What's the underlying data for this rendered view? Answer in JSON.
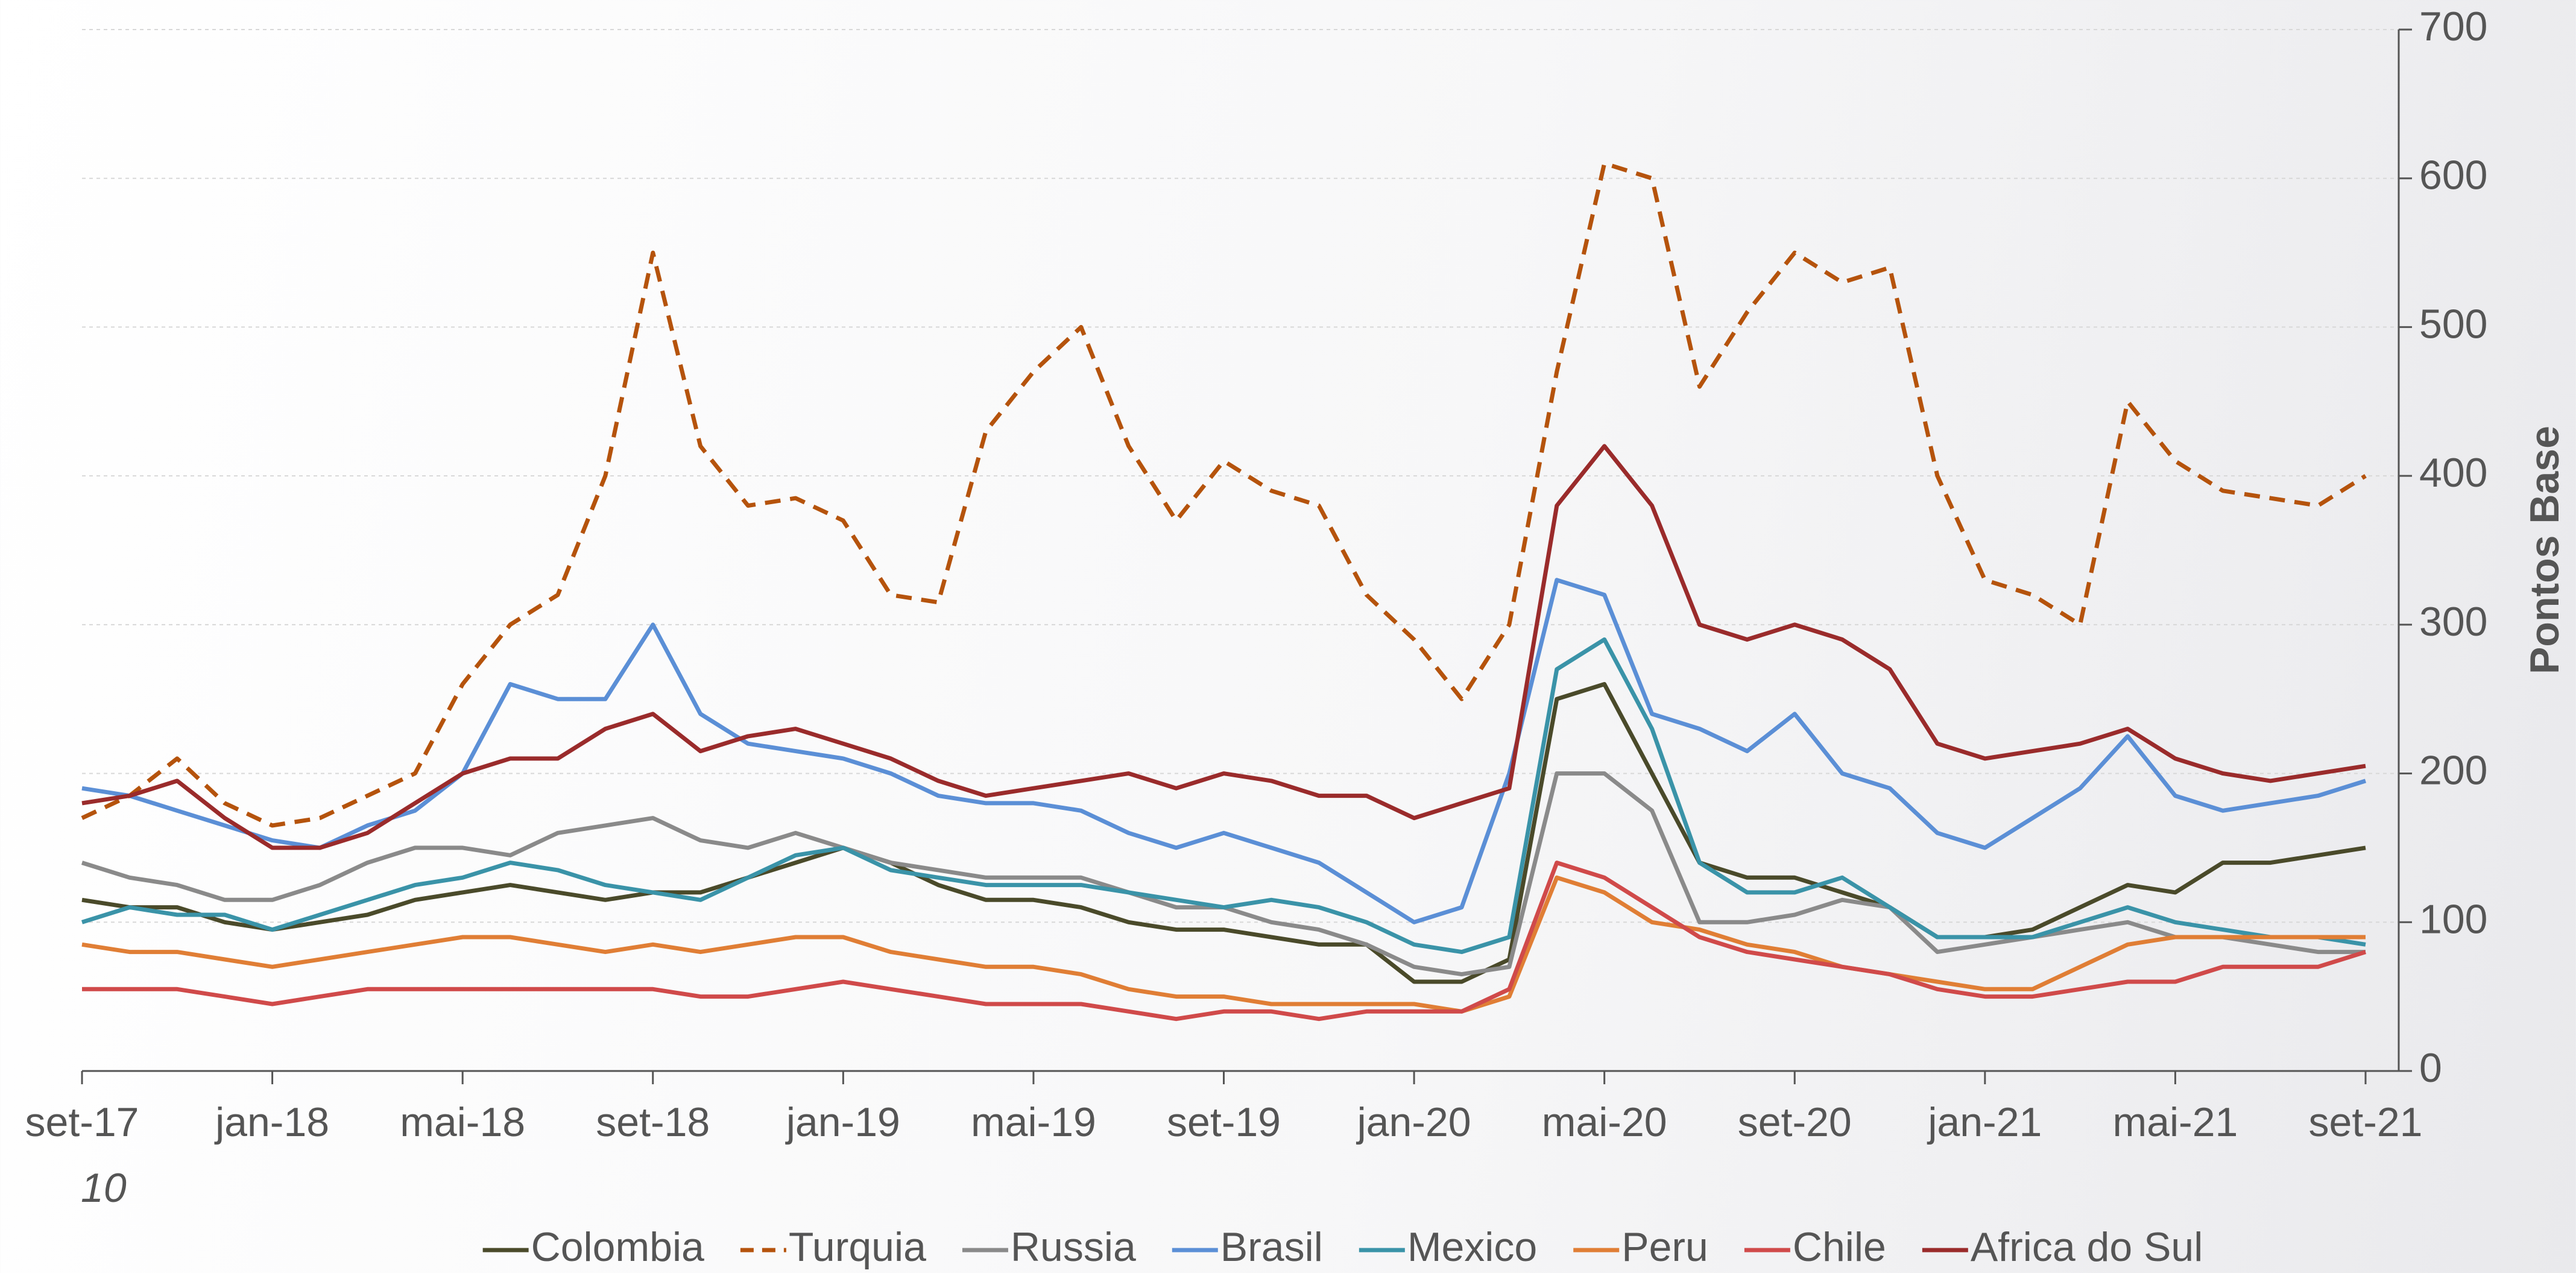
{
  "chart_data": {
    "type": "line",
    "y_axis_label": "Pontos Base",
    "annotation": "10",
    "categories": [
      "set-17",
      null,
      null,
      null,
      "jan-18",
      null,
      null,
      null,
      "mai-18",
      null,
      null,
      null,
      "set-18",
      null,
      null,
      null,
      "jan-19",
      null,
      null,
      null,
      "mai-19",
      null,
      null,
      null,
      "set-19",
      null,
      null,
      null,
      "jan-20",
      null,
      null,
      null,
      "mai-20",
      null,
      null,
      null,
      "set-20",
      null,
      null,
      null,
      "jan-21",
      null,
      null,
      null,
      "mai-21",
      null,
      null,
      null,
      "set-21"
    ],
    "ylim": [
      0,
      700
    ],
    "yticks": [
      0,
      100,
      200,
      300,
      400,
      500,
      600,
      700
    ],
    "y_axis_side": "right",
    "grid": true,
    "legend": "bottom",
    "series": [
      {
        "name": "Colombia",
        "color": "#4a4a2a",
        "values": [
          115,
          110,
          110,
          100,
          95,
          100,
          105,
          115,
          120,
          125,
          120,
          115,
          120,
          120,
          130,
          140,
          150,
          140,
          125,
          115,
          115,
          110,
          100,
          95,
          95,
          90,
          85,
          85,
          60,
          60,
          75,
          250,
          260,
          200,
          140,
          130,
          130,
          120,
          110,
          90,
          90,
          95,
          110,
          125,
          120,
          140,
          140,
          145,
          150
        ]
      },
      {
        "name": "Turquia",
        "color": "#b5530c",
        "dashed": true,
        "values": [
          170,
          185,
          210,
          180,
          165,
          170,
          185,
          200,
          260,
          300,
          320,
          400,
          550,
          420,
          380,
          385,
          370,
          320,
          315,
          430,
          470,
          500,
          420,
          370,
          410,
          390,
          380,
          320,
          290,
          250,
          300,
          470,
          610,
          600,
          460,
          510,
          550,
          530,
          540,
          400,
          330,
          320,
          300,
          450,
          410,
          390,
          385,
          380,
          400
        ]
      },
      {
        "name": "Russia",
        "color": "#8a8a8a",
        "values": [
          140,
          130,
          125,
          115,
          115,
          125,
          140,
          150,
          150,
          145,
          160,
          165,
          170,
          155,
          150,
          160,
          150,
          140,
          135,
          130,
          130,
          130,
          120,
          110,
          110,
          100,
          95,
          85,
          70,
          65,
          70,
          200,
          200,
          175,
          100,
          100,
          105,
          115,
          110,
          80,
          85,
          90,
          95,
          100,
          90,
          90,
          85,
          80,
          80
        ]
      },
      {
        "name": "Brasil",
        "color": "#5b8fd6",
        "values": [
          190,
          185,
          175,
          165,
          155,
          150,
          165,
          175,
          200,
          260,
          250,
          250,
          300,
          240,
          220,
          215,
          210,
          200,
          185,
          180,
          180,
          175,
          160,
          150,
          160,
          150,
          140,
          120,
          100,
          110,
          200,
          330,
          320,
          240,
          230,
          215,
          240,
          200,
          190,
          160,
          150,
          170,
          190,
          225,
          185,
          175,
          180,
          185,
          195
        ]
      },
      {
        "name": "Mexico",
        "color": "#3a93a8",
        "values": [
          100,
          110,
          105,
          105,
          95,
          105,
          115,
          125,
          130,
          140,
          135,
          125,
          120,
          115,
          130,
          145,
          150,
          135,
          130,
          125,
          125,
          125,
          120,
          115,
          110,
          115,
          110,
          100,
          85,
          80,
          90,
          270,
          290,
          230,
          140,
          120,
          120,
          130,
          110,
          90,
          90,
          90,
          100,
          110,
          100,
          95,
          90,
          90,
          85
        ]
      },
      {
        "name": "Peru",
        "color": "#e07e35",
        "values": [
          85,
          80,
          80,
          75,
          70,
          75,
          80,
          85,
          90,
          90,
          85,
          80,
          85,
          80,
          85,
          90,
          90,
          80,
          75,
          70,
          70,
          65,
          55,
          50,
          50,
          45,
          45,
          45,
          45,
          40,
          50,
          130,
          120,
          100,
          95,
          85,
          80,
          70,
          65,
          60,
          55,
          55,
          70,
          85,
          90,
          90,
          90,
          90,
          90
        ]
      },
      {
        "name": "Chile",
        "color": "#d04a4a",
        "values": [
          55,
          55,
          55,
          50,
          45,
          50,
          55,
          55,
          55,
          55,
          55,
          55,
          55,
          50,
          50,
          55,
          60,
          55,
          50,
          45,
          45,
          45,
          40,
          35,
          40,
          40,
          35,
          40,
          40,
          40,
          55,
          140,
          130,
          110,
          90,
          80,
          75,
          70,
          65,
          55,
          50,
          50,
          55,
          60,
          60,
          70,
          70,
          70,
          80
        ]
      },
      {
        "name": "Africa do Sul",
        "color": "#9a2b2b",
        "values": [
          180,
          185,
          195,
          170,
          150,
          150,
          160,
          180,
          200,
          210,
          210,
          230,
          240,
          215,
          225,
          230,
          220,
          210,
          195,
          185,
          190,
          195,
          200,
          190,
          200,
          195,
          185,
          185,
          170,
          180,
          190,
          380,
          420,
          380,
          300,
          290,
          300,
          290,
          270,
          220,
          210,
          215,
          220,
          230,
          210,
          200,
          195,
          200,
          205
        ]
      }
    ]
  }
}
